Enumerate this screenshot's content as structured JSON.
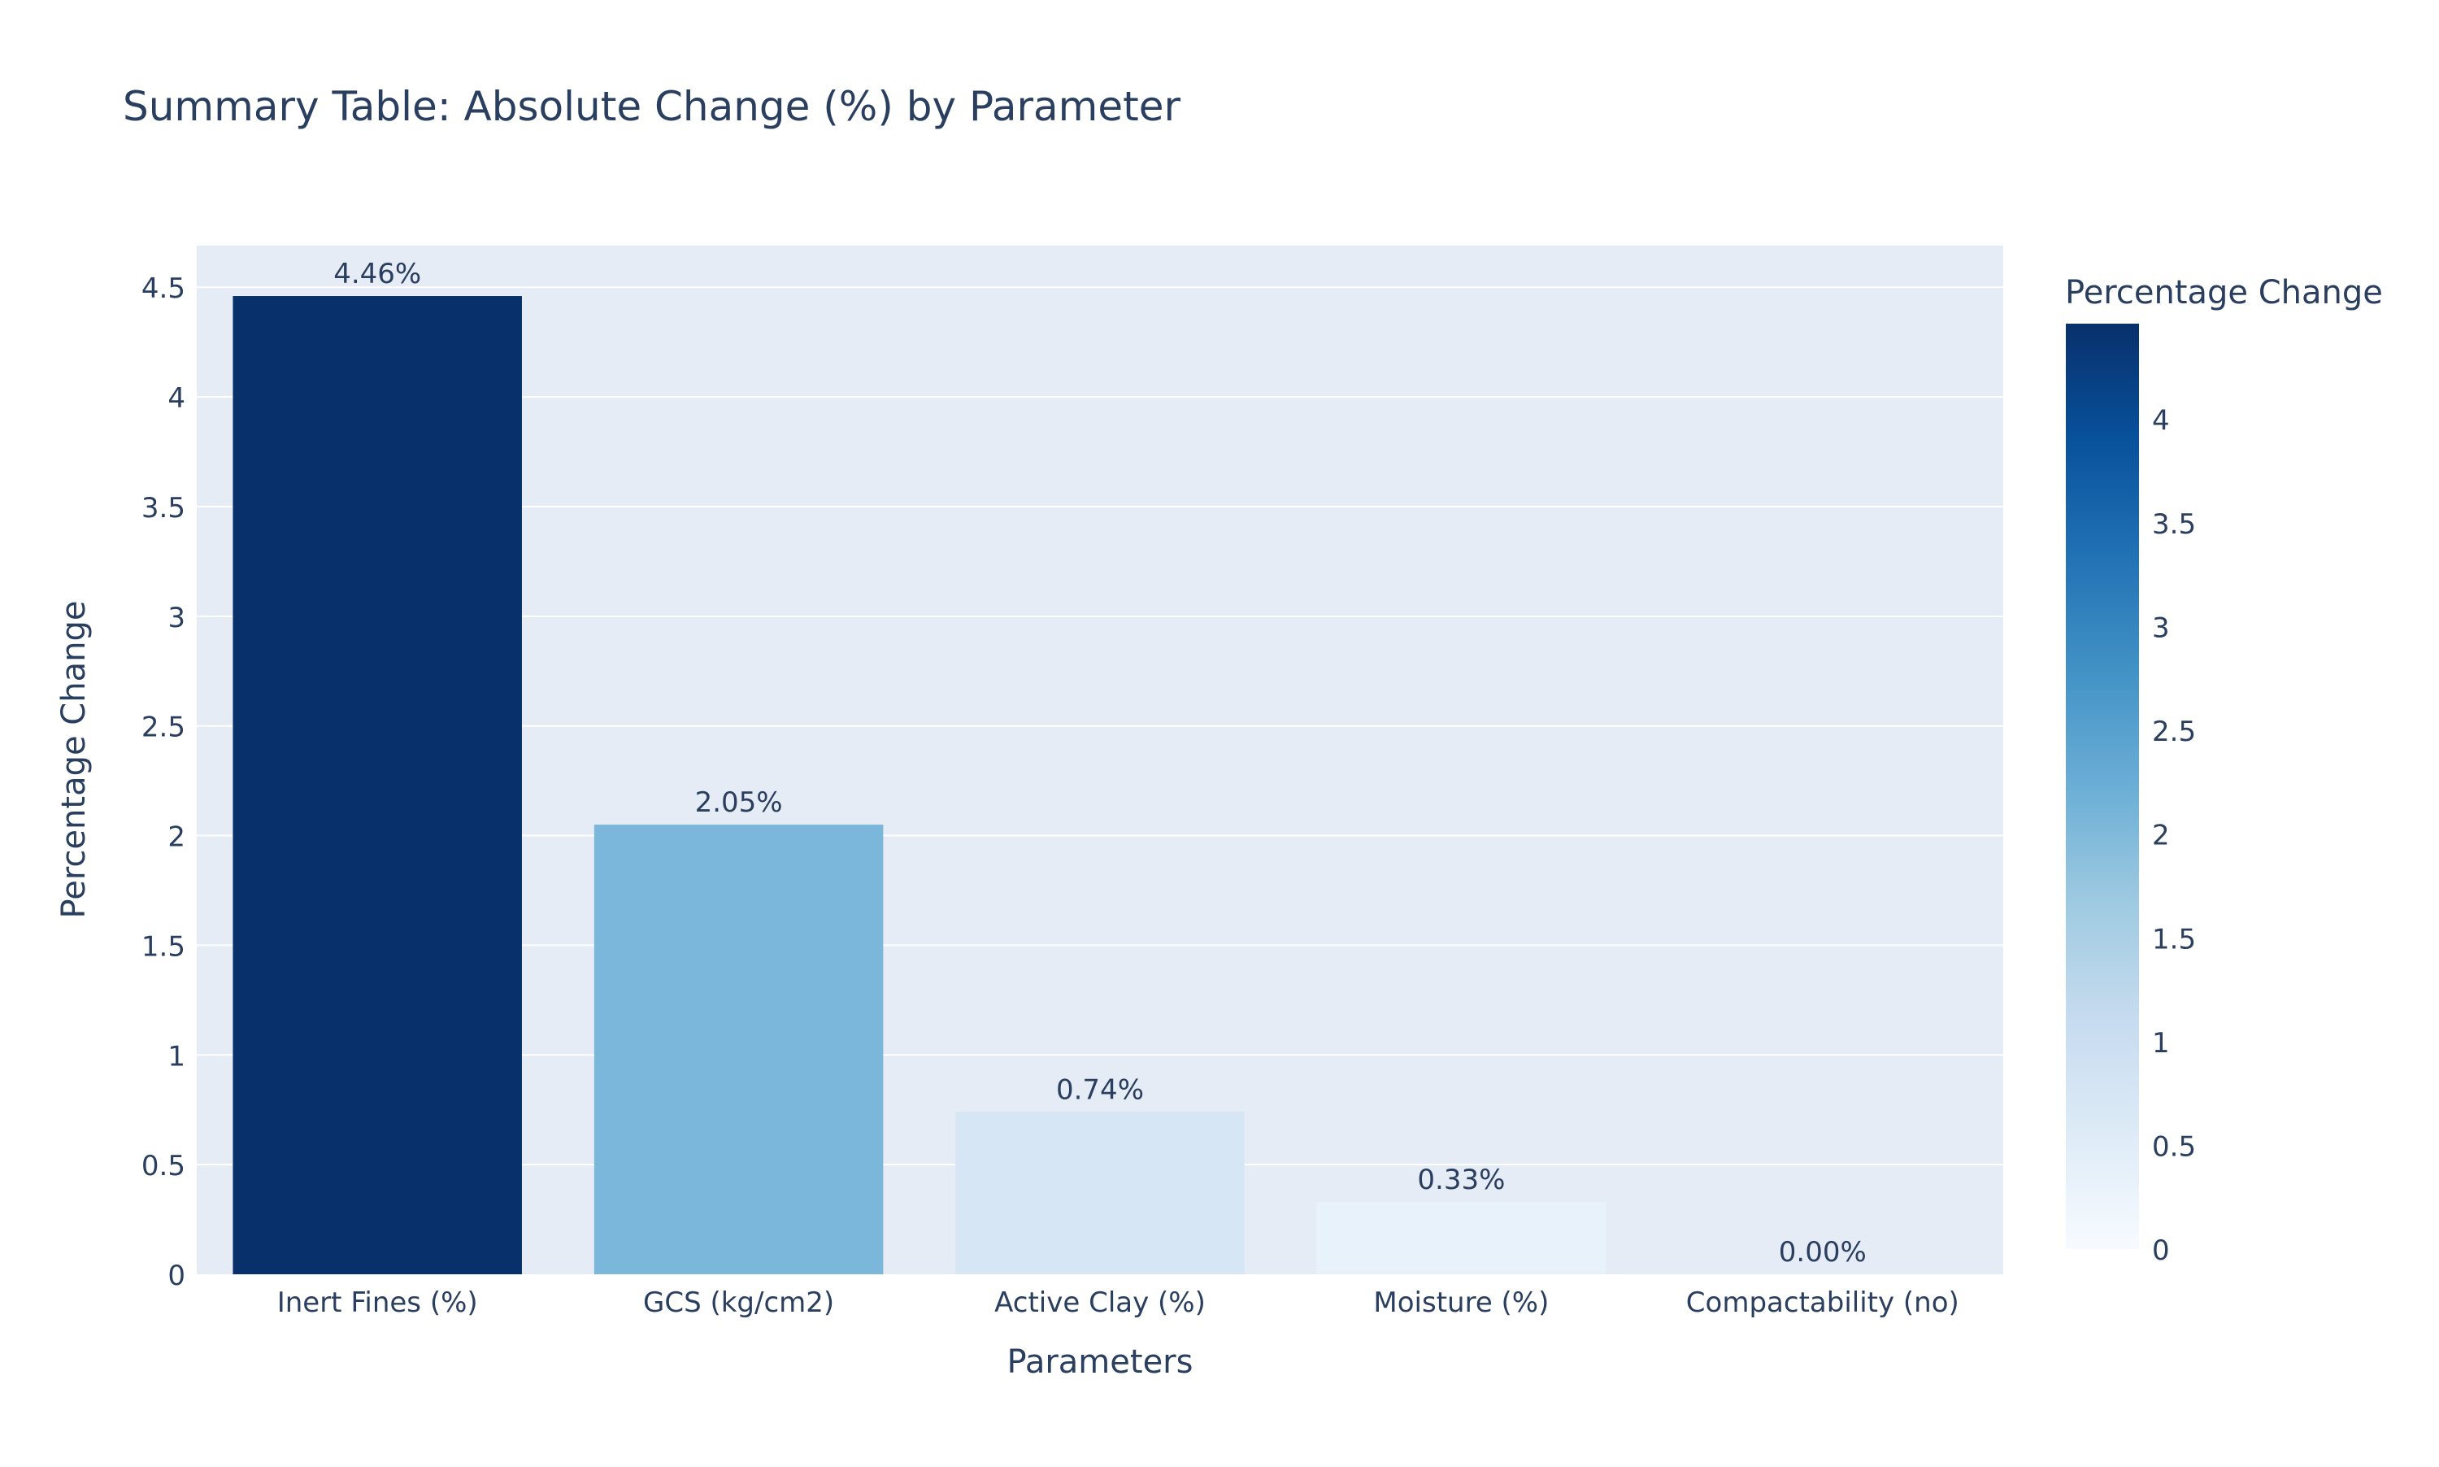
{
  "chart_data": {
    "type": "bar",
    "title": "Summary Table: Absolute Change (%) by Parameter",
    "xlabel": "Parameters",
    "ylabel": "Percentage Change",
    "categories": [
      "Inert Fines (%)",
      "GCS (kg/cm2)",
      "Active Clay (%)",
      "Moisture (%)",
      "Compactability (no)"
    ],
    "values": [
      4.46,
      2.05,
      0.74,
      0.33,
      0.0
    ],
    "data_labels": [
      "4.46%",
      "2.05%",
      "0.74%",
      "0.33%",
      "0.00%"
    ],
    "ylim": [
      0,
      4.69
    ],
    "y_ticks": [
      0,
      0.5,
      1,
      1.5,
      2,
      2.5,
      3,
      3.5,
      4,
      4.5
    ],
    "y_tick_labels": [
      "0",
      "0.5",
      "1",
      "1.5",
      "2",
      "2.5",
      "3",
      "3.5",
      "4",
      "4.5"
    ],
    "grid": true,
    "colorscale": "Blues",
    "colorbar": {
      "title": "Percentage Change",
      "range": [
        0,
        4.46
      ],
      "ticks": [
        0,
        0.5,
        1,
        1.5,
        2,
        2.5,
        3,
        3.5,
        4
      ],
      "tick_labels": [
        "0",
        "0.5",
        "1",
        "1.5",
        "2",
        "2.5",
        "3",
        "3.5",
        "4"
      ]
    },
    "colors": {
      "plot_bg": "#e5ecf6",
      "grid": "#ffffff",
      "text": "#2a3f5f"
    }
  }
}
